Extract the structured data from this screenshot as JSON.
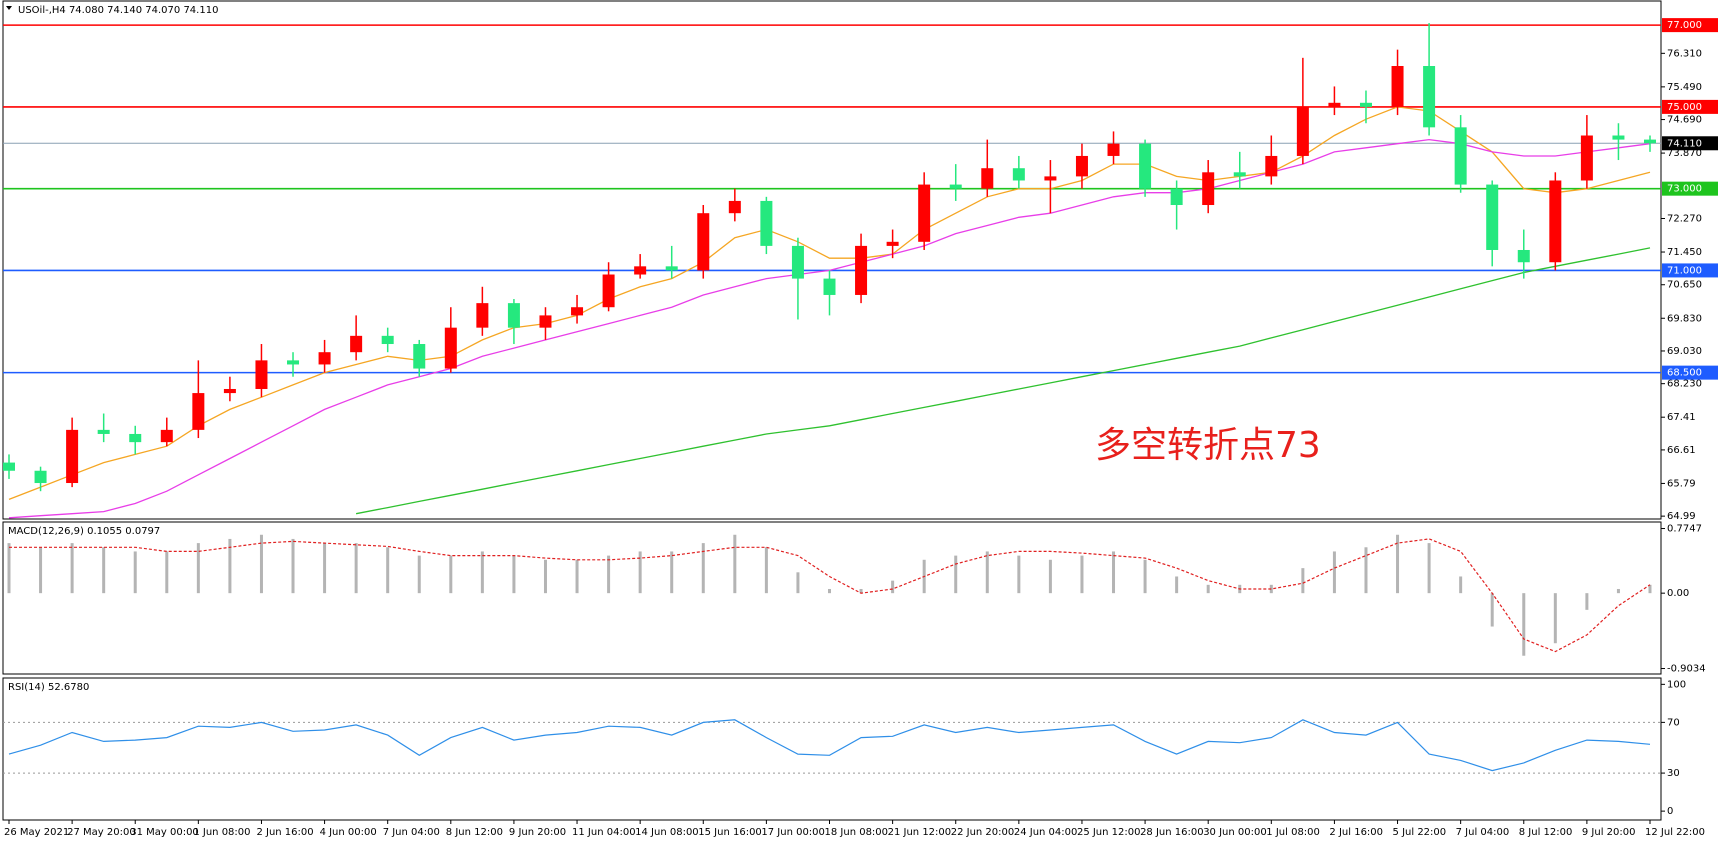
{
  "chart_data": [
    {
      "type": "candlestick",
      "title": "USOil-,H4  74.080 74.140 74.070 74.110",
      "annotation": "多空转折点73",
      "up_color": "#ff0000",
      "down_color": "#25e87e",
      "categories": [
        "26 May 2021",
        null,
        "27 May 20:00",
        null,
        "31 May 00:00",
        null,
        "1 Jun 08:00",
        null,
        "2 Jun 16:00",
        null,
        "4 Jun 00:00",
        null,
        "7 Jun 04:00",
        null,
        "8 Jun 12:00",
        null,
        "9 Jun 20:00",
        null,
        "11 Jun 04:00",
        null,
        "14 Jun 08:00",
        null,
        "15 Jun 16:00",
        null,
        "17 Jun 00:00",
        null,
        "18 Jun 08:00",
        null,
        "21 Jun 12:00",
        null,
        "22 Jun 20:00",
        null,
        "24 Jun 04:00",
        null,
        "25 Jun 12:00",
        null,
        "28 Jun 16:00",
        null,
        "30 Jun 00:00",
        null,
        "1 Jul 08:00",
        null,
        "2 Jul 16:00",
        null,
        "5 Jul 22:00",
        null,
        "7 Jul 04:00",
        null,
        "8 Jul 12:00",
        null,
        "9 Jul 20:00",
        null,
        "12 Jul 22:00"
      ],
      "open": [
        66.3,
        66.1,
        65.8,
        67.1,
        67.0,
        66.8,
        67.1,
        68.0,
        68.1,
        68.8,
        68.7,
        69.0,
        69.4,
        69.2,
        68.6,
        69.6,
        70.2,
        69.6,
        69.9,
        70.1,
        70.9,
        71.1,
        71.0,
        72.4,
        72.7,
        71.6,
        70.8,
        70.4,
        71.6,
        71.7,
        73.1,
        73.0,
        73.5,
        73.2,
        73.3,
        73.8,
        74.1,
        73.0,
        72.6,
        73.4,
        73.3,
        73.8,
        75.0,
        75.1,
        75.0,
        76.0,
        74.5,
        73.1,
        71.5,
        71.2,
        73.2,
        74.3,
        74.2
      ],
      "high": [
        66.5,
        66.2,
        67.4,
        67.5,
        67.2,
        67.4,
        68.8,
        68.4,
        69.2,
        69.0,
        69.3,
        69.9,
        69.6,
        69.3,
        70.1,
        70.6,
        70.3,
        70.1,
        70.4,
        71.2,
        71.4,
        71.6,
        72.6,
        73.0,
        72.8,
        71.8,
        71.0,
        71.9,
        72.0,
        73.4,
        73.6,
        74.2,
        73.8,
        73.7,
        74.1,
        74.4,
        74.2,
        73.2,
        73.7,
        73.9,
        74.3,
        76.2,
        75.5,
        75.4,
        76.4,
        77.05,
        74.8,
        73.2,
        72.0,
        73.4,
        74.8,
        74.6,
        74.3
      ],
      "low": [
        65.9,
        65.6,
        65.7,
        66.8,
        66.5,
        66.7,
        66.9,
        67.8,
        67.9,
        68.4,
        68.5,
        68.8,
        69.0,
        68.4,
        68.5,
        69.4,
        69.2,
        69.3,
        69.7,
        70.0,
        70.8,
        70.8,
        70.8,
        72.2,
        71.4,
        69.8,
        69.9,
        70.2,
        71.3,
        71.5,
        72.7,
        72.8,
        73.0,
        72.4,
        73.0,
        73.6,
        72.8,
        72.0,
        72.4,
        73.0,
        73.1,
        73.6,
        74.8,
        74.6,
        74.8,
        74.3,
        72.9,
        71.1,
        70.8,
        71.0,
        73.0,
        73.7,
        73.9
      ],
      "close": [
        66.1,
        65.8,
        67.1,
        67.0,
        66.8,
        67.1,
        68.0,
        68.1,
        68.8,
        68.7,
        69.0,
        69.4,
        69.2,
        68.6,
        69.6,
        70.2,
        69.6,
        69.9,
        70.1,
        70.9,
        71.1,
        71.0,
        72.4,
        72.7,
        71.6,
        70.8,
        70.4,
        71.6,
        71.7,
        73.1,
        73.0,
        73.5,
        73.2,
        73.3,
        73.8,
        74.1,
        73.0,
        72.6,
        73.4,
        73.3,
        73.8,
        75.0,
        75.1,
        75.0,
        76.0,
        74.5,
        73.1,
        71.5,
        71.2,
        73.2,
        74.3,
        74.2,
        74.11
      ],
      "series": [
        {
          "color": "#f5a623",
          "values": [
            65.4,
            65.7,
            66.0,
            66.3,
            66.5,
            66.7,
            67.2,
            67.6,
            67.9,
            68.2,
            68.5,
            68.7,
            68.9,
            68.8,
            68.9,
            69.3,
            69.6,
            69.7,
            69.9,
            70.3,
            70.6,
            70.8,
            71.2,
            71.8,
            72.0,
            71.7,
            71.3,
            71.3,
            71.4,
            72.0,
            72.4,
            72.8,
            73.0,
            73.0,
            73.2,
            73.6,
            73.6,
            73.3,
            73.2,
            73.3,
            73.4,
            73.8,
            74.3,
            74.7,
            75.0,
            74.9,
            74.4,
            73.9,
            73.0,
            72.9,
            73.0,
            73.2,
            73.4
          ]
        },
        {
          "color": "#e83ee8",
          "values": [
            64.95,
            65.0,
            65.05,
            65.1,
            65.3,
            65.6,
            66.0,
            66.4,
            66.8,
            67.2,
            67.6,
            67.9,
            68.2,
            68.4,
            68.6,
            68.9,
            69.1,
            69.3,
            69.5,
            69.7,
            69.9,
            70.1,
            70.4,
            70.6,
            70.8,
            70.9,
            71.0,
            71.2,
            71.4,
            71.6,
            71.9,
            72.1,
            72.3,
            72.4,
            72.6,
            72.8,
            72.9,
            72.9,
            73.0,
            73.2,
            73.4,
            73.6,
            73.9,
            74.0,
            74.1,
            74.2,
            74.1,
            73.9,
            73.8,
            73.8,
            73.9,
            74.0,
            74.1
          ]
        },
        {
          "color": "#2fc12f",
          "values": [
            null,
            null,
            null,
            null,
            null,
            null,
            null,
            null,
            null,
            null,
            null,
            65.05,
            65.2,
            65.35,
            65.5,
            65.65,
            65.8,
            65.95,
            66.1,
            66.25,
            66.4,
            66.55,
            66.7,
            66.85,
            67.0,
            67.1,
            67.2,
            67.35,
            67.5,
            67.65,
            67.8,
            67.95,
            68.1,
            68.25,
            68.4,
            68.55,
            68.7,
            68.85,
            69.0,
            69.15,
            69.35,
            69.55,
            69.75,
            69.95,
            70.15,
            70.35,
            70.55,
            70.75,
            70.95,
            71.1,
            71.25,
            71.4,
            71.55
          ]
        }
      ],
      "hlines": [
        {
          "value": 77,
          "label": "77.000",
          "color": "#ff0000"
        },
        {
          "value": 75,
          "label": "75.000",
          "color": "#ff0000"
        },
        {
          "value": 74.11,
          "label": "74.110",
          "color": "#000000"
        },
        {
          "value": 73,
          "label": "73.000",
          "color": "#1ec41e"
        },
        {
          "value": 71,
          "label": "71.000",
          "color": "#1e5cff"
        },
        {
          "value": 68.5,
          "label": "68.500",
          "color": "#1e5cff"
        }
      ],
      "ylim": [
        64.92,
        77.59
      ],
      "yticks": [
        {
          "value": 76.31,
          "label": "76.310"
        },
        {
          "value": 75.49,
          "label": "75.490"
        },
        {
          "value": 74.69,
          "label": "74.690"
        },
        {
          "value": 73.87,
          "label": "73.870"
        },
        {
          "value": 72.27,
          "label": "72.270"
        },
        {
          "value": 71.45,
          "label": "71.450"
        },
        {
          "value": 70.65,
          "label": "70.650"
        },
        {
          "value": 69.83,
          "label": "69.830"
        },
        {
          "value": 69.03,
          "label": "69.030"
        },
        {
          "value": 68.23,
          "label": "68.230"
        },
        67.41,
        66.61,
        65.79,
        64.99
      ]
    },
    {
      "type": "combo",
      "title": "MACD(12,26,9) 0.1055 0.0797",
      "series": [
        {
          "kind": "bar",
          "color": "#b4b4b4",
          "values": [
            0.6,
            0.55,
            0.6,
            0.55,
            0.5,
            0.5,
            0.6,
            0.65,
            0.7,
            0.65,
            0.6,
            0.6,
            0.55,
            0.45,
            0.45,
            0.5,
            0.45,
            0.4,
            0.4,
            0.45,
            0.5,
            0.5,
            0.6,
            0.7,
            0.55,
            0.25,
            0.05,
            0.05,
            0.15,
            0.4,
            0.45,
            0.5,
            0.45,
            0.4,
            0.45,
            0.5,
            0.4,
            0.2,
            0.1,
            0.1,
            0.1,
            0.3,
            0.5,
            0.55,
            0.7,
            0.6,
            0.2,
            -0.4,
            -0.75,
            -0.6,
            -0.2,
            0.05,
            0.1
          ]
        },
        {
          "kind": "line",
          "dashed": true,
          "color": "#e02020",
          "values": [
            0.55,
            0.55,
            0.55,
            0.55,
            0.55,
            0.5,
            0.5,
            0.55,
            0.6,
            0.62,
            0.6,
            0.58,
            0.56,
            0.5,
            0.45,
            0.45,
            0.45,
            0.42,
            0.4,
            0.4,
            0.42,
            0.45,
            0.5,
            0.55,
            0.55,
            0.45,
            0.2,
            0.0,
            0.05,
            0.2,
            0.35,
            0.45,
            0.5,
            0.5,
            0.48,
            0.45,
            0.42,
            0.3,
            0.15,
            0.05,
            0.05,
            0.12,
            0.3,
            0.45,
            0.6,
            0.65,
            0.5,
            0.0,
            -0.55,
            -0.7,
            -0.5,
            -0.15,
            0.1
          ]
        }
      ],
      "ylim": [
        -0.969,
        0.853
      ],
      "yticks": [
        0.7747,
        {
          "value": 0,
          "label": "0.00"
        },
        -0.9034
      ]
    },
    {
      "type": "line",
      "title": "RSI(14) 52.6780",
      "series": [
        {
          "color": "#2f8fe8",
          "values": [
            45,
            52,
            62,
            55,
            56,
            58,
            67,
            66,
            70,
            63,
            64,
            68,
            60,
            44,
            58,
            66,
            56,
            60,
            62,
            67,
            66,
            60,
            70,
            72,
            58,
            45,
            44,
            58,
            59,
            68,
            62,
            66,
            62,
            64,
            66,
            68,
            55,
            45,
            55,
            54,
            58,
            72,
            62,
            60,
            70,
            45,
            40,
            32,
            38,
            48,
            56,
            55,
            52.68
          ]
        }
      ],
      "levels": [
        70,
        30
      ],
      "ylim": [
        -7,
        105
      ],
      "yticks": [
        100,
        70,
        30,
        0
      ]
    }
  ]
}
